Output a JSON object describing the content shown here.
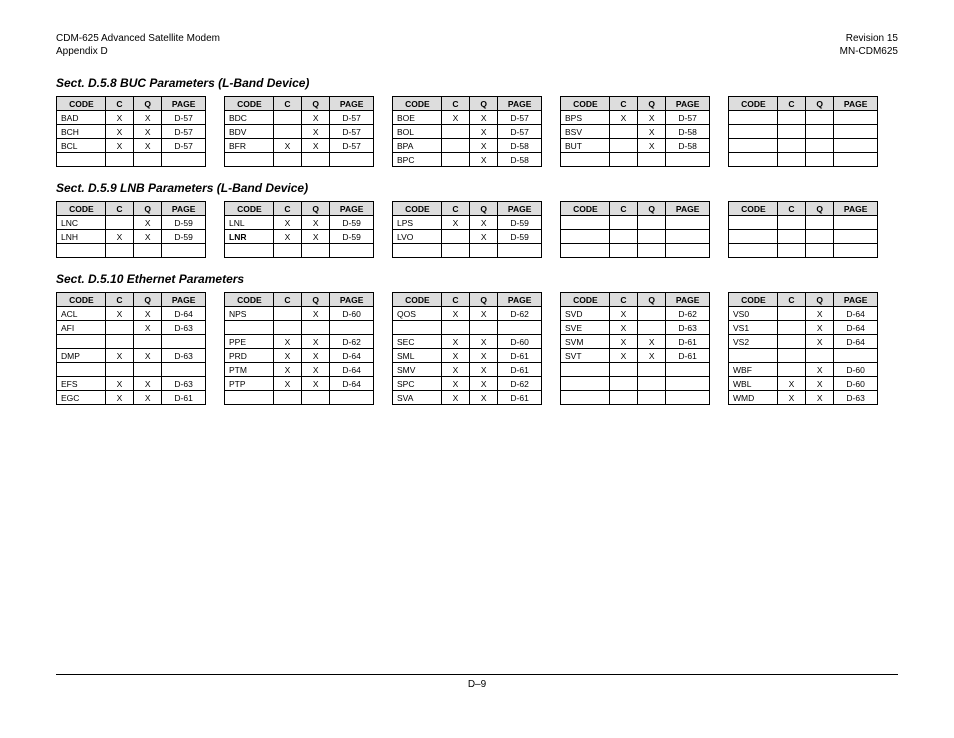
{
  "header": {
    "left1": "CDM-625 Advanced Satellite Modem",
    "left2": "Appendix D",
    "right1": "Revision 15",
    "right2": "MN-CDM625"
  },
  "footer": "D–9",
  "columns": {
    "code": "CODE",
    "c": "C",
    "q": "Q",
    "page": "PAGE"
  },
  "sections": [
    {
      "title": "Sect. D.5.8 BUC Parameters (L-Band Device)",
      "tables": [
        [
          {
            "code": "BAD",
            "c": "X",
            "q": "X",
            "page": "D-57"
          },
          {
            "code": "BCH",
            "c": "X",
            "q": "X",
            "page": "D-57"
          },
          {
            "code": "BCL",
            "c": "X",
            "q": "X",
            "page": "D-57"
          },
          {
            "code": "",
            "c": "",
            "q": "",
            "page": ""
          }
        ],
        [
          {
            "code": "BDC",
            "c": "",
            "q": "X",
            "page": "D-57"
          },
          {
            "code": "BDV",
            "c": "",
            "q": "X",
            "page": "D-57"
          },
          {
            "code": "BFR",
            "c": "X",
            "q": "X",
            "page": "D-57"
          },
          {
            "code": "",
            "c": "",
            "q": "",
            "page": ""
          }
        ],
        [
          {
            "code": "BOE",
            "c": "X",
            "q": "X",
            "page": "D-57"
          },
          {
            "code": "BOL",
            "c": "",
            "q": "X",
            "page": "D-57"
          },
          {
            "code": "BPA",
            "c": "",
            "q": "X",
            "page": "D-58"
          },
          {
            "code": "BPC",
            "c": "",
            "q": "X",
            "page": "D-58"
          }
        ],
        [
          {
            "code": "BPS",
            "c": "X",
            "q": "X",
            "page": "D-57"
          },
          {
            "code": "BSV",
            "c": "",
            "q": "X",
            "page": "D-58"
          },
          {
            "code": "BUT",
            "c": "",
            "q": "X",
            "page": "D-58"
          },
          {
            "code": "",
            "c": "",
            "q": "",
            "page": ""
          }
        ],
        [
          {
            "code": "",
            "c": "",
            "q": "",
            "page": ""
          },
          {
            "code": "",
            "c": "",
            "q": "",
            "page": ""
          },
          {
            "code": "",
            "c": "",
            "q": "",
            "page": ""
          },
          {
            "code": "",
            "c": "",
            "q": "",
            "page": ""
          }
        ]
      ]
    },
    {
      "title": "Sect. D.5.9 LNB Parameters (L-Band Device)",
      "tables": [
        [
          {
            "code": "LNC",
            "c": "",
            "q": "X",
            "page": "D-59"
          },
          {
            "code": "LNH",
            "c": "X",
            "q": "X",
            "page": "D-59"
          },
          {
            "code": "",
            "c": "",
            "q": "",
            "page": ""
          }
        ],
        [
          {
            "code": "LNL",
            "c": "X",
            "q": "X",
            "page": "D-59"
          },
          {
            "code": "LNR",
            "c": "X",
            "q": "X",
            "page": "D-59",
            "bold": true
          },
          {
            "code": "",
            "c": "",
            "q": "",
            "page": ""
          }
        ],
        [
          {
            "code": "LPS",
            "c": "X",
            "q": "X",
            "page": "D-59"
          },
          {
            "code": "LVO",
            "c": "",
            "q": "X",
            "page": "D-59"
          },
          {
            "code": "",
            "c": "",
            "q": "",
            "page": ""
          }
        ],
        [
          {
            "code": "",
            "c": "",
            "q": "",
            "page": ""
          },
          {
            "code": "",
            "c": "",
            "q": "",
            "page": ""
          },
          {
            "code": "",
            "c": "",
            "q": "",
            "page": ""
          }
        ],
        [
          {
            "code": "",
            "c": "",
            "q": "",
            "page": ""
          },
          {
            "code": "",
            "c": "",
            "q": "",
            "page": ""
          },
          {
            "code": "",
            "c": "",
            "q": "",
            "page": ""
          }
        ]
      ]
    },
    {
      "title": "Sect. D.5.10 Ethernet Parameters",
      "tables": [
        [
          {
            "code": "ACL",
            "c": "X",
            "q": "X",
            "page": "D-64"
          },
          {
            "code": "AFI",
            "c": "",
            "q": "X",
            "page": "D-63"
          },
          {
            "code": "",
            "c": "",
            "q": "",
            "page": ""
          },
          {
            "code": "DMP",
            "c": "X",
            "q": "X",
            "page": "D-63"
          },
          {
            "code": "",
            "c": "",
            "q": "",
            "page": ""
          },
          {
            "code": "EFS",
            "c": "X",
            "q": "X",
            "page": "D-63"
          },
          {
            "code": "EGC",
            "c": "X",
            "q": "X",
            "page": "D-61"
          }
        ],
        [
          {
            "code": "NPS",
            "c": "",
            "q": "X",
            "page": "D-60"
          },
          {
            "code": "",
            "c": "",
            "q": "",
            "page": ""
          },
          {
            "code": "PPE",
            "c": "X",
            "q": "X",
            "page": "D-62"
          },
          {
            "code": "PRD",
            "c": "X",
            "q": "X",
            "page": "D-64"
          },
          {
            "code": "PTM",
            "c": "X",
            "q": "X",
            "page": "D-64"
          },
          {
            "code": "PTP",
            "c": "X",
            "q": "X",
            "page": "D-64"
          },
          {
            "code": "",
            "c": "",
            "q": "",
            "page": ""
          }
        ],
        [
          {
            "code": "QOS",
            "c": "X",
            "q": "X",
            "page": "D-62"
          },
          {
            "code": "",
            "c": "",
            "q": "",
            "page": ""
          },
          {
            "code": "SEC",
            "c": "X",
            "q": "X",
            "page": "D-60"
          },
          {
            "code": "SML",
            "c": "X",
            "q": "X",
            "page": "D-61"
          },
          {
            "code": "SMV",
            "c": "X",
            "q": "X",
            "page": "D-61"
          },
          {
            "code": "SPC",
            "c": "X",
            "q": "X",
            "page": "D-62"
          },
          {
            "code": "SVA",
            "c": "X",
            "q": "X",
            "page": "D-61"
          }
        ],
        [
          {
            "code": "SVD",
            "c": "X",
            "q": "",
            "page": "D-62"
          },
          {
            "code": "SVE",
            "c": "X",
            "q": "",
            "page": "D-63"
          },
          {
            "code": "SVM",
            "c": "X",
            "q": "X",
            "page": "D-61"
          },
          {
            "code": "SVT",
            "c": "X",
            "q": "X",
            "page": "D-61"
          },
          {
            "code": "",
            "c": "",
            "q": "",
            "page": ""
          },
          {
            "code": "",
            "c": "",
            "q": "",
            "page": ""
          },
          {
            "code": "",
            "c": "",
            "q": "",
            "page": ""
          }
        ],
        [
          {
            "code": "VS0",
            "c": "",
            "q": "X",
            "page": "D-64"
          },
          {
            "code": "VS1",
            "c": "",
            "q": "X",
            "page": "D-64"
          },
          {
            "code": "VS2",
            "c": "",
            "q": "X",
            "page": "D-64"
          },
          {
            "code": "",
            "c": "",
            "q": "",
            "page": ""
          },
          {
            "code": "WBF",
            "c": "",
            "q": "X",
            "page": "D-60"
          },
          {
            "code": "WBL",
            "c": "X",
            "q": "X",
            "page": "D-60"
          },
          {
            "code": "WMD",
            "c": "X",
            "q": "X",
            "page": "D-63"
          }
        ]
      ]
    }
  ]
}
